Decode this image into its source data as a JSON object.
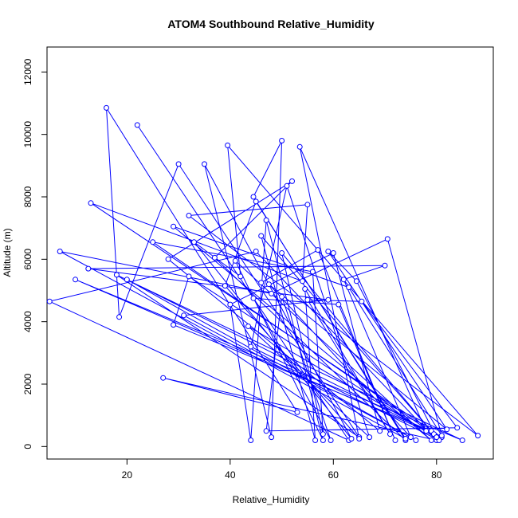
{
  "chart_data": {
    "type": "line",
    "title": "ATOM4 Southbound Relative_Humidity",
    "xlabel": "Relative_Humidity",
    "ylabel": "Altitude (m)",
    "xlim": [
      4.5,
      91.0
    ],
    "ylim": [
      -400,
      12800
    ],
    "xticks": [
      20,
      40,
      60,
      80
    ],
    "yticks": [
      0,
      2000,
      4000,
      6000,
      8000,
      10000,
      12000
    ],
    "grid": false,
    "marker": "open-circle",
    "series_color": "#0000ff",
    "series": [
      {
        "points": [
          [
            22,
            10300
          ],
          [
            63,
            200
          ],
          [
            5,
            4650
          ],
          [
            45,
            6250
          ],
          [
            80,
            200
          ],
          [
            27,
            2200
          ],
          [
            53,
            1100
          ],
          [
            16,
            10850
          ],
          [
            18.5,
            4150
          ],
          [
            30,
            9050
          ],
          [
            65,
            300
          ],
          [
            18,
            5500
          ],
          [
            85,
            200
          ],
          [
            10,
            5350
          ],
          [
            81,
            300
          ],
          [
            13,
            7800
          ],
          [
            54,
            5300
          ],
          [
            55,
            7750
          ],
          [
            32,
            7400
          ],
          [
            88,
            350
          ],
          [
            39.5,
            9650
          ],
          [
            42,
            5450
          ],
          [
            33,
            6550
          ],
          [
            63.5,
            250
          ],
          [
            35,
            9050
          ],
          [
            48,
            300
          ],
          [
            50,
            9800
          ],
          [
            44.5,
            8000
          ],
          [
            74,
            200
          ],
          [
            37,
            6050
          ],
          [
            52,
            8500
          ],
          [
            28,
            6000
          ],
          [
            69,
            500
          ],
          [
            60,
            6200
          ],
          [
            40,
            4550
          ],
          [
            44,
            200
          ],
          [
            47,
            7250
          ],
          [
            58,
            200
          ],
          [
            41,
            5950
          ],
          [
            79,
            200
          ],
          [
            29,
            7050
          ],
          [
            63,
            5100
          ],
          [
            81,
            350
          ],
          [
            70.5,
            6650
          ],
          [
            48,
            4900
          ],
          [
            7,
            6250
          ],
          [
            74,
            250
          ],
          [
            45,
            7850
          ],
          [
            39,
            5150
          ],
          [
            65,
            250
          ],
          [
            53.5,
            9600
          ],
          [
            78,
            500
          ],
          [
            43.5,
            3850
          ],
          [
            67,
            300
          ],
          [
            51,
            8350
          ],
          [
            44,
            3200
          ],
          [
            80.5,
            200
          ],
          [
            32,
            5450
          ],
          [
            29,
            3900
          ],
          [
            79,
            500
          ],
          [
            50,
            6200
          ],
          [
            58,
            400
          ],
          [
            56,
            5600
          ],
          [
            25,
            6550
          ],
          [
            79.5,
            400
          ],
          [
            20,
            5350
          ],
          [
            76,
            200
          ],
          [
            31,
            4200
          ],
          [
            59,
            4700
          ],
          [
            12.5,
            5700
          ],
          [
            70,
            5800
          ],
          [
            62,
            5350
          ],
          [
            75,
            300
          ],
          [
            47.5,
            5200
          ],
          [
            82,
            550
          ],
          [
            59,
            6250
          ],
          [
            64.5,
            5300
          ],
          [
            80,
            300
          ],
          [
            46,
            6750
          ],
          [
            56.5,
            200
          ],
          [
            54.5,
            5050
          ],
          [
            71,
            400
          ],
          [
            55,
            4700
          ],
          [
            65.5,
            4650
          ],
          [
            84,
            600
          ],
          [
            47,
            500
          ],
          [
            50,
            4800
          ],
          [
            59.5,
            200
          ],
          [
            44.5,
            4750
          ],
          [
            61,
            4550
          ],
          [
            72,
            200
          ],
          [
            57,
            6300
          ],
          [
            46,
            5250
          ]
        ]
      }
    ]
  }
}
